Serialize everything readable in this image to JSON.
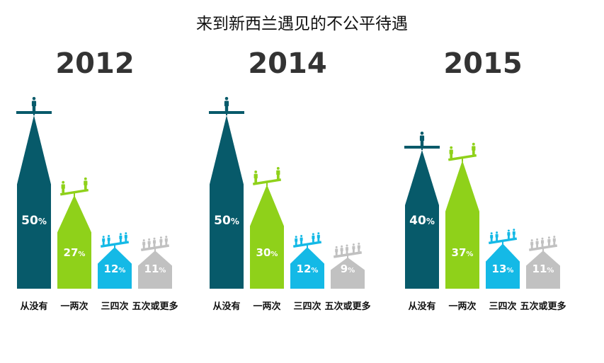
{
  "title": "来到新西兰遇见的不公平待遇",
  "colors": {
    "never": "#075a6a",
    "once_twice": "#8fd11a",
    "three_four": "#14b9e6",
    "five_plus": "#c1c1c1"
  },
  "chart_data": {
    "type": "bar",
    "title": "来到新西兰遇见的不公平待遇",
    "categories": [
      "从没有",
      "一两次",
      "三四次",
      "五次或更多"
    ],
    "unit": "%",
    "ylim": [
      0,
      50
    ],
    "legend": "none",
    "grid": false,
    "series": [
      {
        "name": "2012",
        "values": [
          50,
          27,
          12,
          11
        ]
      },
      {
        "name": "2014",
        "values": [
          50,
          30,
          12,
          9
        ]
      },
      {
        "name": "2015",
        "values": [
          40,
          37,
          13,
          11
        ]
      }
    ]
  },
  "icons": [
    "person-icon",
    "seesaw-icon"
  ]
}
